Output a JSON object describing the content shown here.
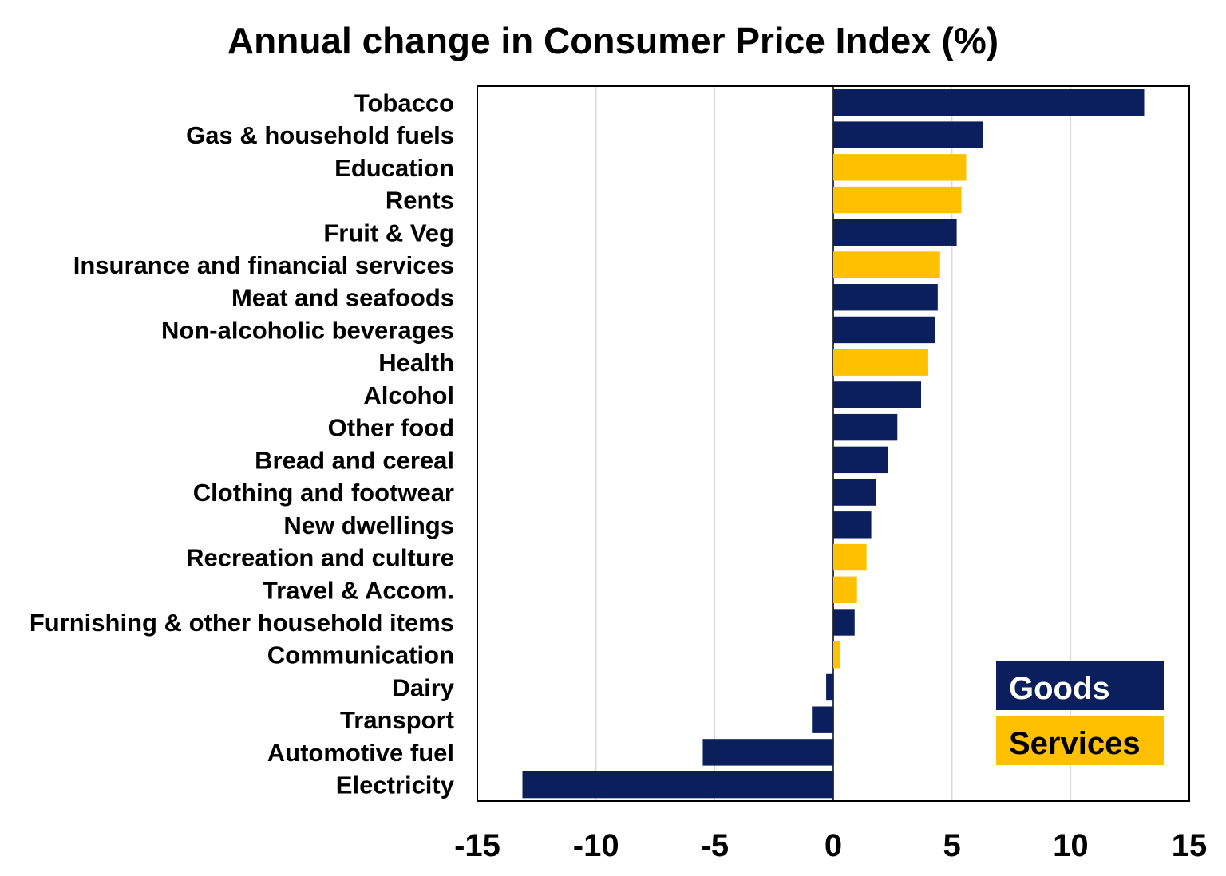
{
  "chart_data": {
    "type": "bar",
    "orientation": "horizontal",
    "title": "Annual change in Consumer Price Index (%)",
    "xlabel": "",
    "ylabel": "",
    "xlim": [
      -15,
      15
    ],
    "xticks": [
      -15,
      -10,
      -5,
      0,
      5,
      10,
      15
    ],
    "grid": true,
    "legend_position": "bottom-right",
    "colors": {
      "Goods": "#0a1f5c",
      "Services": "#ffc000",
      "goods_text": "#ffffff",
      "services_text": "#000000"
    },
    "legend": [
      "Goods",
      "Services"
    ],
    "categories": [
      "Tobacco",
      "Gas & household fuels",
      "Education",
      "Rents",
      "Fruit & Veg",
      "Insurance and financial services",
      "Meat and seafoods",
      "Non-alcoholic beverages",
      "Health",
      "Alcohol",
      "Other food",
      "Bread and cereal",
      "Clothing and footwear",
      "New dwellings",
      "Recreation and culture",
      "Travel & Accom.",
      "Furnishing & other household items",
      "Communication",
      "Dairy",
      "Transport",
      "Automotive fuel",
      "Electricity"
    ],
    "values": [
      13.1,
      6.3,
      5.6,
      5.4,
      5.2,
      4.5,
      4.4,
      4.3,
      4.0,
      3.7,
      2.7,
      2.3,
      1.8,
      1.6,
      1.4,
      1.0,
      0.9,
      0.3,
      -0.3,
      -0.9,
      -5.5,
      -13.1
    ],
    "series_type": [
      "Goods",
      "Goods",
      "Services",
      "Services",
      "Goods",
      "Services",
      "Goods",
      "Goods",
      "Services",
      "Goods",
      "Goods",
      "Goods",
      "Goods",
      "Goods",
      "Services",
      "Services",
      "Goods",
      "Services",
      "Goods",
      "Goods",
      "Goods",
      "Goods"
    ]
  }
}
